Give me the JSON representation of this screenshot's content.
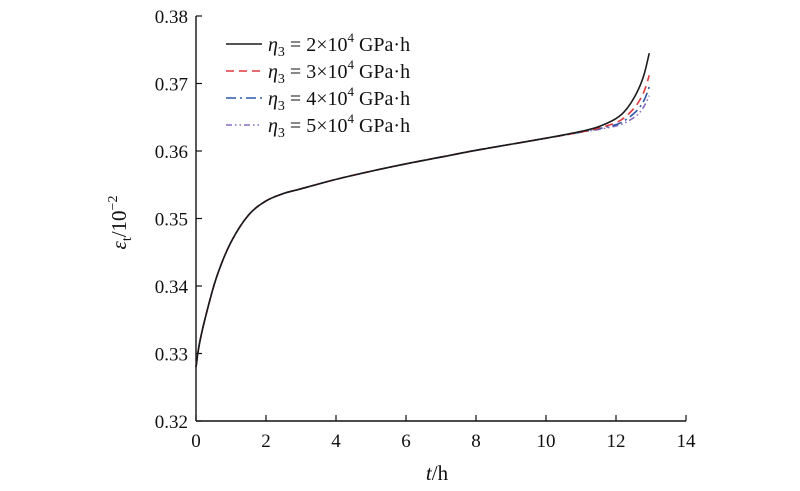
{
  "chart_data": {
    "type": "line",
    "title": "",
    "xlabel": {
      "var": "t",
      "unit": "/h"
    },
    "ylabel": {
      "var": "ε",
      "sub": "t",
      "unit": "/10",
      "exp": "−2"
    },
    "xlim": [
      0,
      14
    ],
    "ylim": [
      0.32,
      0.38
    ],
    "xticks": [
      0,
      2,
      4,
      6,
      8,
      10,
      12,
      14
    ],
    "yticks": [
      0.32,
      0.33,
      0.34,
      0.35,
      0.36,
      0.37,
      0.38
    ],
    "xtick_labels": [
      "0",
      "2",
      "4",
      "6",
      "8",
      "10",
      "12",
      "14"
    ],
    "ytick_labels": [
      "0.32",
      "0.33",
      "0.34",
      "0.35",
      "0.36",
      "0.37",
      "0.38"
    ],
    "grid": false,
    "legend_position": "top-left",
    "series": [
      {
        "name": "η3 = 2×10^4 GPa·h",
        "legend": {
          "sym": "η",
          "sub": "3",
          "text": " = 2×10",
          "sup": "4",
          "unit": " GPa·h"
        },
        "color": "#1a1a1a",
        "dash": "solid",
        "x": [
          0,
          0.1,
          0.3,
          0.6,
          1.0,
          1.5,
          2.0,
          2.5,
          3.0,
          4.0,
          5.0,
          6.0,
          7.0,
          8.0,
          9.0,
          10.0,
          11.0,
          11.5,
          12.0,
          12.3,
          12.6,
          12.8,
          12.95
        ],
        "y": [
          0.328,
          0.3315,
          0.336,
          0.3415,
          0.3465,
          0.3505,
          0.3526,
          0.3537,
          0.3544,
          0.3558,
          0.357,
          0.3581,
          0.3591,
          0.3601,
          0.361,
          0.3619,
          0.3629,
          0.3636,
          0.3648,
          0.3662,
          0.3687,
          0.3713,
          0.3745
        ]
      },
      {
        "name": "η3 = 3×10^4 GPa·h",
        "legend": {
          "sym": "η",
          "sub": "3",
          "text": " = 3×10",
          "sup": "4",
          "unit": " GPa·h"
        },
        "color": "#e0393e",
        "dash": "8,5",
        "x": [
          0,
          0.1,
          0.3,
          0.6,
          1.0,
          1.5,
          2.0,
          2.5,
          3.0,
          4.0,
          5.0,
          6.0,
          7.0,
          8.0,
          9.0,
          10.0,
          11.0,
          11.5,
          12.0,
          12.3,
          12.6,
          12.8,
          12.95
        ],
        "y": [
          0.328,
          0.3315,
          0.336,
          0.3415,
          0.3465,
          0.3505,
          0.3526,
          0.3537,
          0.3544,
          0.3558,
          0.357,
          0.3581,
          0.3591,
          0.3601,
          0.361,
          0.3619,
          0.3628,
          0.3634,
          0.3642,
          0.3652,
          0.3669,
          0.3688,
          0.3712
        ]
      },
      {
        "name": "η3 = 4×10^4 GPa·h",
        "legend": {
          "sym": "η",
          "sub": "3",
          "text": " = 4×10",
          "sup": "4",
          "unit": " GPa·h"
        },
        "color": "#2c58a8",
        "dash": "10,4,2,4",
        "x": [
          0,
          0.1,
          0.3,
          0.6,
          1.0,
          1.5,
          2.0,
          2.5,
          3.0,
          4.0,
          5.0,
          6.0,
          7.0,
          8.0,
          9.0,
          10.0,
          11.0,
          11.5,
          12.0,
          12.3,
          12.6,
          12.8,
          12.95
        ],
        "y": [
          0.328,
          0.3315,
          0.336,
          0.3415,
          0.3465,
          0.3505,
          0.3526,
          0.3537,
          0.3544,
          0.3558,
          0.357,
          0.3581,
          0.3591,
          0.3601,
          0.361,
          0.3619,
          0.3628,
          0.3633,
          0.3639,
          0.3647,
          0.366,
          0.3675,
          0.3695
        ]
      },
      {
        "name": "η3 = 5×10^4 GPa·h",
        "legend": {
          "sym": "η",
          "sub": "3",
          "text": " = 5×10",
          "sup": "4",
          "unit": " GPa·h"
        },
        "color": "#8a6bbf",
        "dash": "6,3,1.5,3,1.5,3",
        "x": [
          0,
          0.1,
          0.3,
          0.6,
          1.0,
          1.5,
          2.0,
          2.5,
          3.0,
          4.0,
          5.0,
          6.0,
          7.0,
          8.0,
          9.0,
          10.0,
          11.0,
          11.5,
          12.0,
          12.3,
          12.6,
          12.8,
          12.95
        ],
        "y": [
          0.328,
          0.3315,
          0.336,
          0.3415,
          0.3465,
          0.3505,
          0.3526,
          0.3537,
          0.3544,
          0.3558,
          0.357,
          0.3581,
          0.3591,
          0.3601,
          0.361,
          0.3619,
          0.3628,
          0.3632,
          0.3637,
          0.3643,
          0.3653,
          0.3666,
          0.3682
        ]
      }
    ]
  }
}
